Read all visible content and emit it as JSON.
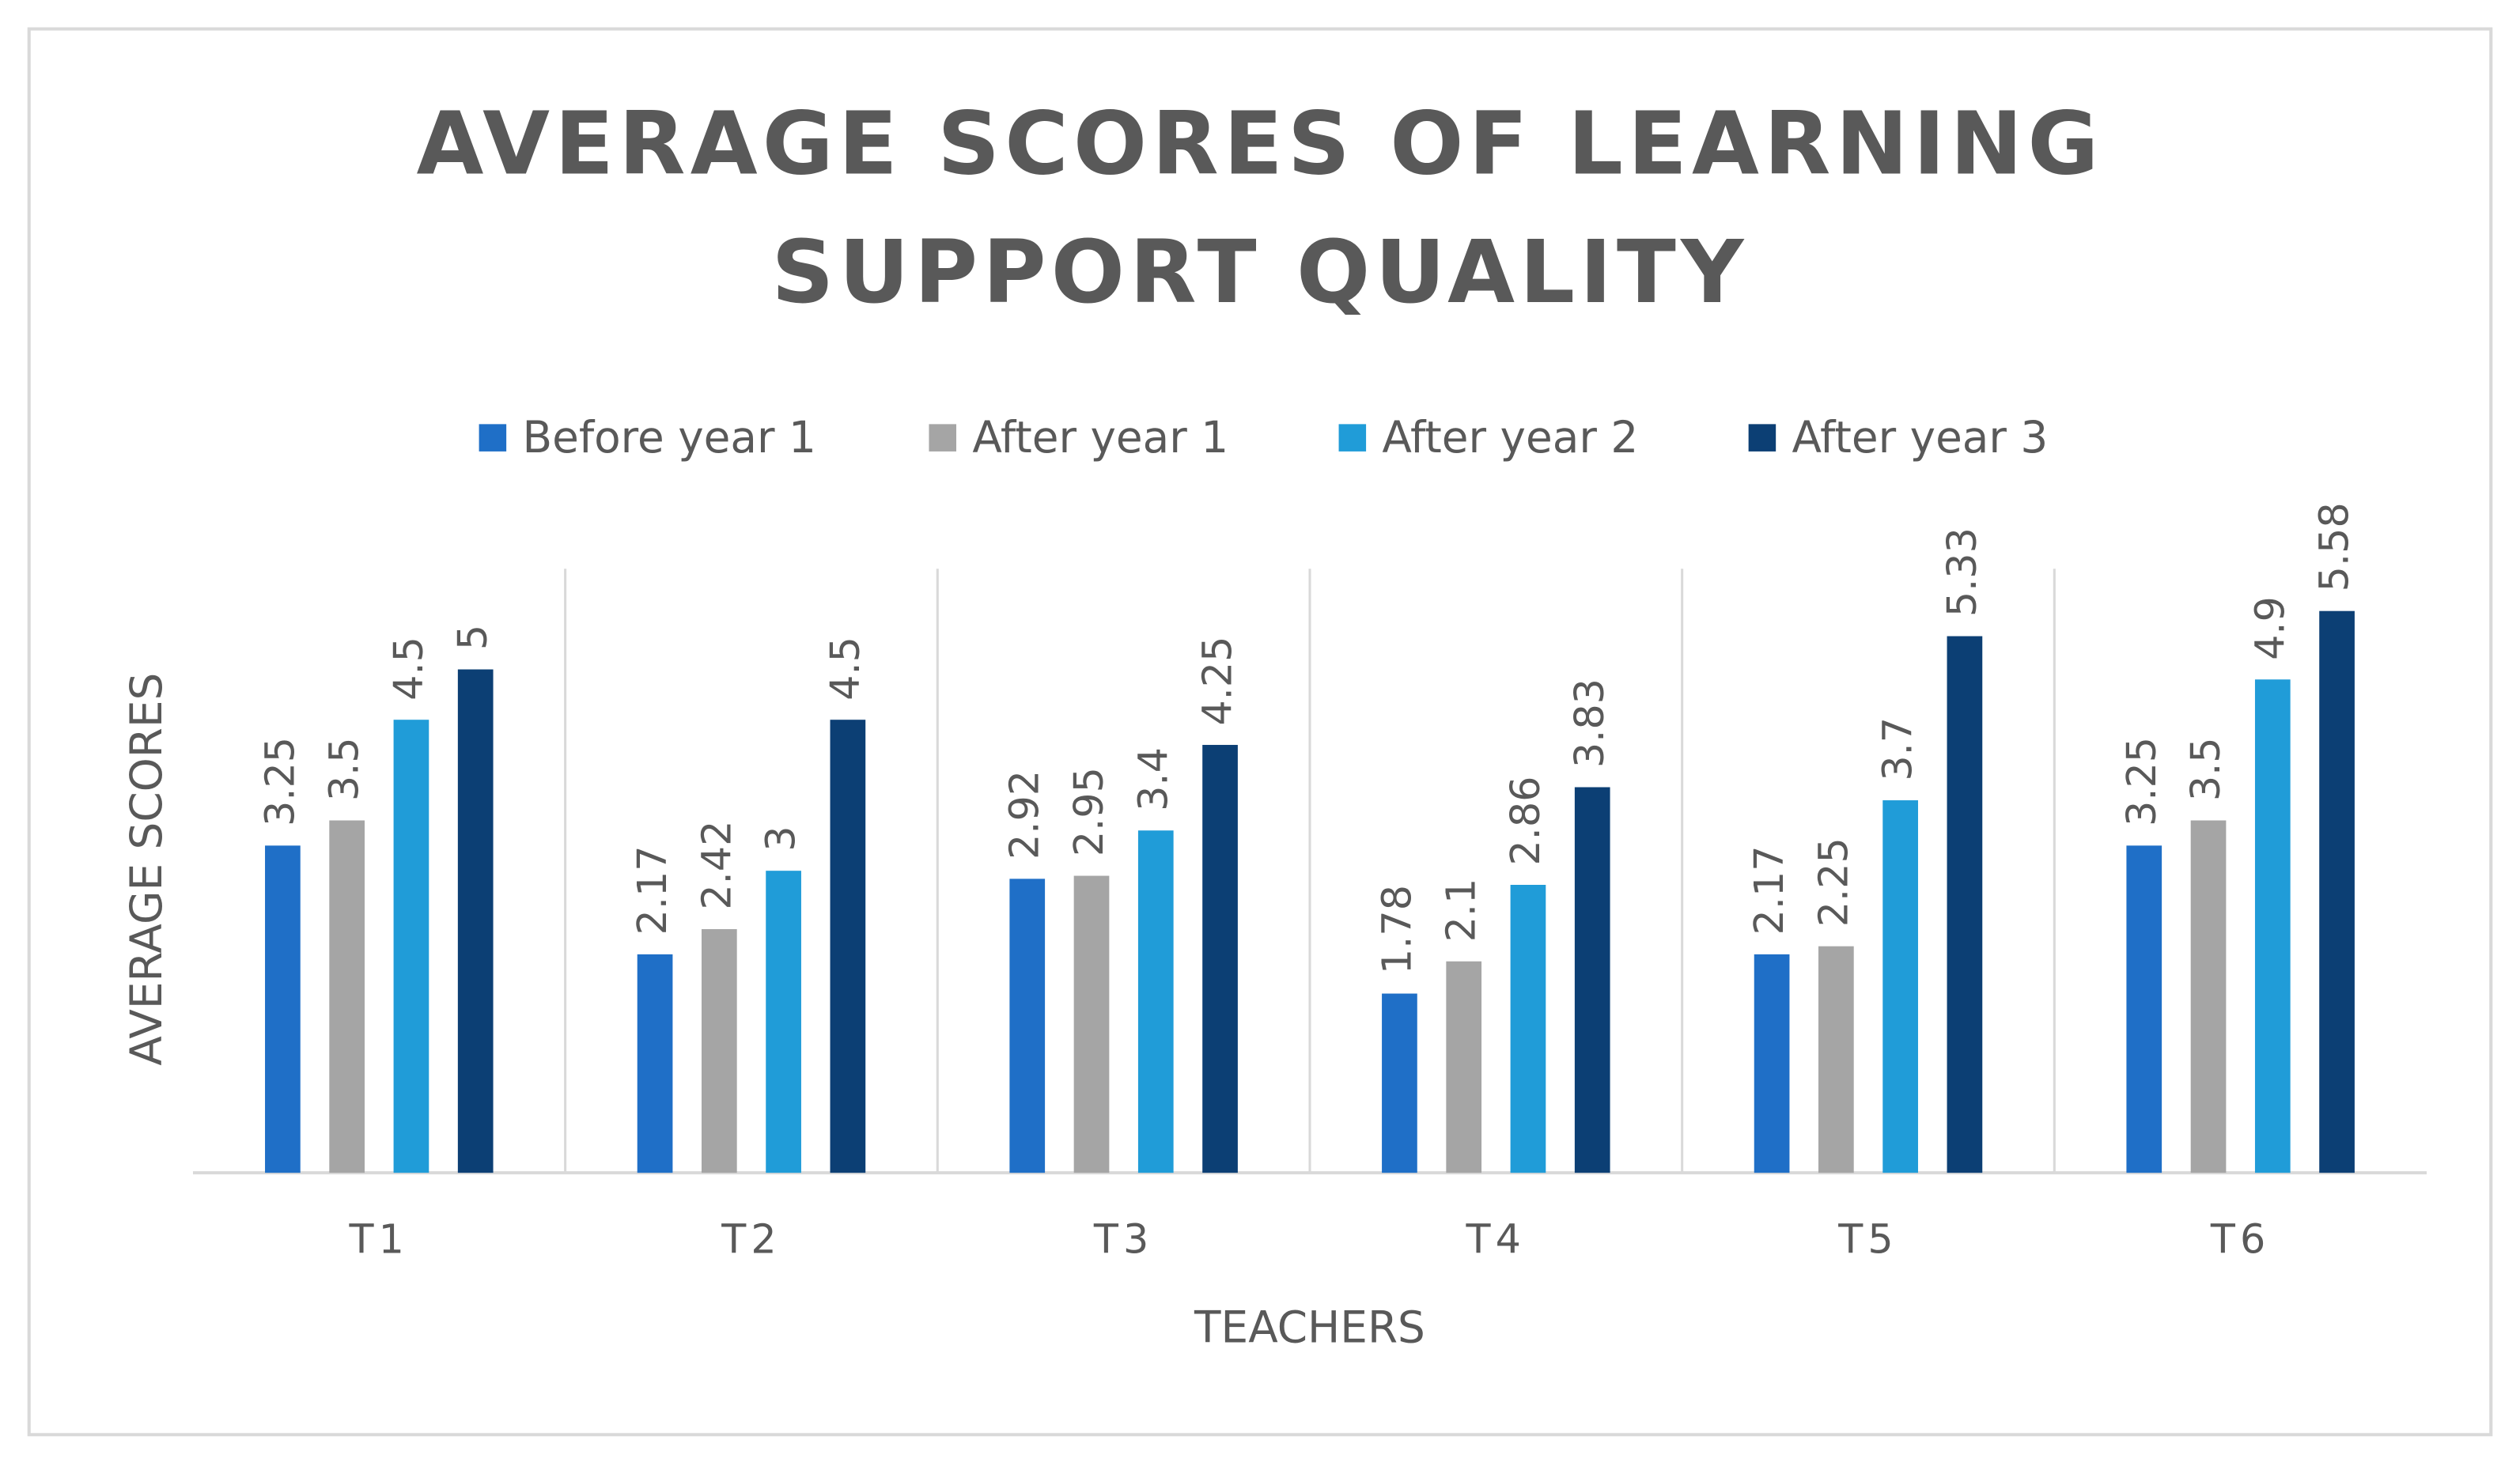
{
  "chart_data": {
    "type": "bar",
    "title": "AVERAGE SCORES OF LEARNING SUPPORT QUALITY",
    "x_label": "TEACHERS",
    "y_label": "AVERAGE SCORES",
    "categories": [
      "T1",
      "T2",
      "T3",
      "T4",
      "T5",
      "T6"
    ],
    "series": [
      {
        "name": "Before year 1",
        "color": "#1f6fc7",
        "values": [
          3.25,
          2.17,
          2.92,
          1.78,
          2.17,
          3.25
        ]
      },
      {
        "name": "After year 1",
        "color": "#a5a5a5",
        "values": [
          3.5,
          2.42,
          2.95,
          2.1,
          2.25,
          3.5
        ]
      },
      {
        "name": "After year 2",
        "color": "#209cd8",
        "values": [
          4.5,
          3,
          3.4,
          2.86,
          3.7,
          4.9
        ]
      },
      {
        "name": "After year 3",
        "color": "#0c3f74",
        "values": [
          5,
          4.5,
          4.25,
          3.83,
          5.33,
          5.58
        ]
      }
    ],
    "ylim": [
      0,
      6
    ],
    "legend": "top"
  }
}
